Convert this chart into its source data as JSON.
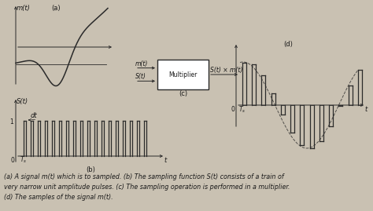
{
  "bg_color": "#c9c1b2",
  "text_color": "#1a1a1a",
  "line_color": "#2a2a2a",
  "caption_line1": "(a) A signal m(t) which is to sampled. (b) The sampling function S(t) consists of a train of",
  "caption_line2": "very narrow unit amplitude pulses. (c) The sampling operation is performed in a multiplier.",
  "caption_line3": "(d) The samples of the signal m(t).",
  "fig_width": 4.74,
  "fig_height": 2.69,
  "dpi": 100
}
